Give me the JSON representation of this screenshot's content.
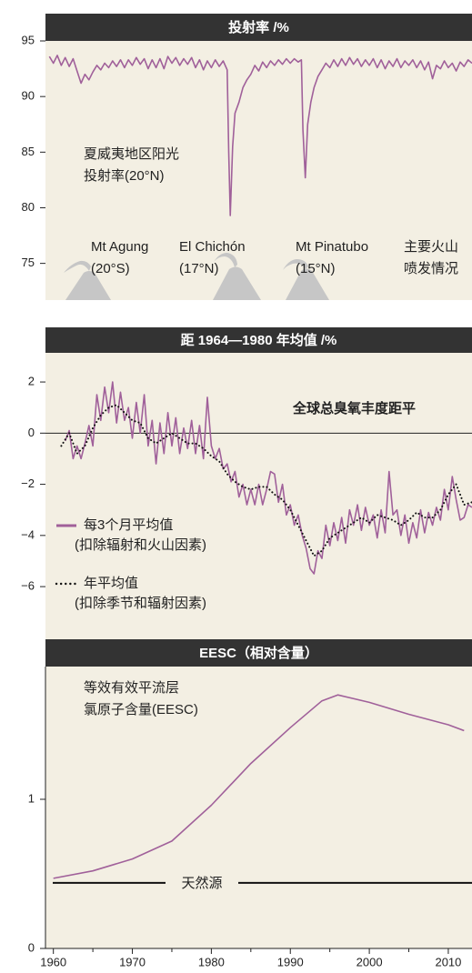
{
  "chart_data": [
    {
      "type": "line",
      "title": "投射率 /%",
      "background": "#f3efe3",
      "header_color": "#333333",
      "xlim": [
        1959,
        2013
      ],
      "ylim": [
        71.7,
        95
      ],
      "yticks": [
        75,
        80,
        85,
        90,
        95
      ],
      "annotations": [
        [
          "夏威夷地区阳光",
          "投射率(20°N)"
        ],
        [
          "Mt Agung",
          "(20°S)"
        ],
        [
          "El Chichón",
          "(17°N)"
        ],
        [
          "Mt Pinatubo",
          "(15°N)"
        ],
        [
          "主要火山",
          "喷发情况"
        ]
      ],
      "series": [
        {
          "color": "#a0609a",
          "x": [
            1959.5,
            1960,
            1960.5,
            1961,
            1961.5,
            1962,
            1962.5,
            1963,
            1963.5,
            1964,
            1964.5,
            1965,
            1965.5,
            1966,
            1966.5,
            1967,
            1967.5,
            1968,
            1968.5,
            1969,
            1969.5,
            1970,
            1970.5,
            1971,
            1971.5,
            1972,
            1972.5,
            1973,
            1973.5,
            1974,
            1974.5,
            1975,
            1975.5,
            1976,
            1976.5,
            1977,
            1977.5,
            1978,
            1978.5,
            1979,
            1979.5,
            1980,
            1980.5,
            1981,
            1981.5,
            1982,
            1982.2,
            1982.4,
            1982.7,
            1983,
            1983.5,
            1984,
            1984.5,
            1985,
            1985.5,
            1986,
            1986.5,
            1987,
            1987.5,
            1988,
            1988.5,
            1989,
            1989.5,
            1990,
            1990.5,
            1991,
            1991.4,
            1991.6,
            1991.9,
            1992.2,
            1992.6,
            1993,
            1993.5,
            1994,
            1994.5,
            1995,
            1995.5,
            1996,
            1996.5,
            1997,
            1997.5,
            1998,
            1998.5,
            1999,
            1999.5,
            2000,
            2000.5,
            2001,
            2001.5,
            2002,
            2002.5,
            2003,
            2003.5,
            2004,
            2004.5,
            2005,
            2005.5,
            2006,
            2006.5,
            2007,
            2007.5,
            2008,
            2008.5,
            2009,
            2009.5,
            2010,
            2010.5,
            2011,
            2011.5,
            2012,
            2012.5,
            2013
          ],
          "values": [
            93.6,
            93.0,
            93.7,
            92.8,
            93.5,
            92.7,
            93.4,
            92.3,
            91.2,
            92.0,
            91.5,
            92.2,
            92.8,
            92.4,
            93.0,
            92.6,
            93.2,
            92.7,
            93.3,
            92.6,
            93.3,
            92.8,
            93.5,
            92.9,
            93.4,
            92.5,
            93.3,
            92.6,
            93.4,
            92.5,
            93.6,
            93.0,
            93.5,
            92.8,
            93.4,
            92.9,
            93.5,
            92.6,
            93.3,
            92.4,
            93.2,
            92.6,
            93.3,
            92.7,
            93.2,
            92.4,
            85,
            79.3,
            85.5,
            88.5,
            89.5,
            90.8,
            91.5,
            92.0,
            92.8,
            92.3,
            93.1,
            92.6,
            93.2,
            92.8,
            93.3,
            92.9,
            93.4,
            93.0,
            93.4,
            93.1,
            93.3,
            87,
            82.7,
            87.5,
            89.5,
            90.8,
            91.8,
            92.4,
            93.0,
            92.6,
            93.3,
            92.7,
            93.4,
            92.8,
            93.5,
            92.9,
            93.4,
            92.7,
            93.3,
            92.8,
            93.4,
            92.6,
            93.3,
            92.5,
            93.2,
            92.7,
            93.4,
            92.6,
            93.2,
            92.8,
            93.3,
            92.6,
            93.2,
            92.4,
            93.1,
            91.6,
            92.8,
            92.5,
            93.2,
            92.6,
            93.0,
            92.3,
            93.1,
            92.7,
            93.3,
            93.0
          ]
        }
      ]
    },
    {
      "type": "line",
      "title": "距 1964—1980 年均值 /%",
      "background": "#f3efe3",
      "header_color": "#333333",
      "xlim": [
        1959,
        2013
      ],
      "ylim": [
        -8.13,
        3.14
      ],
      "yticks": [
        {
          "value": -6,
          "label": "−6"
        },
        {
          "value": -4,
          "label": "−4"
        },
        {
          "value": -2,
          "label": "−2"
        },
        0,
        2
      ],
      "zeroline": true,
      "annotations": [
        [
          "全球总臭氧丰度距平"
        ]
      ],
      "series": [
        {
          "name": "每3个月平均值",
          "name_detail": "(扣除辐射和火山因素)",
          "color": "#a0609a",
          "style": "solid",
          "x": [
            1961.5,
            1962,
            1962.5,
            1963,
            1963.5,
            1964,
            1964.5,
            1965,
            1965.5,
            1966,
            1966.5,
            1967,
            1967.5,
            1968,
            1968.5,
            1969,
            1969.5,
            1970,
            1970.5,
            1971,
            1971.5,
            1972,
            1972.5,
            1973,
            1973.5,
            1974,
            1974.5,
            1975,
            1975.5,
            1976,
            1976.5,
            1977,
            1977.5,
            1978,
            1978.5,
            1979,
            1979.5,
            1980,
            1980.5,
            1981,
            1981.5,
            1982,
            1982.5,
            1983,
            1983.5,
            1984,
            1984.5,
            1985,
            1985.5,
            1986,
            1986.5,
            1987,
            1987.5,
            1988,
            1988.5,
            1989,
            1989.5,
            1990,
            1990.5,
            1991,
            1991.5,
            1992,
            1992.5,
            1993,
            1993.5,
            1994,
            1994.5,
            1995,
            1995.5,
            1996,
            1996.5,
            1997,
            1997.5,
            1998,
            1998.5,
            1999,
            1999.5,
            2000,
            2000.5,
            2001,
            2001.5,
            2002,
            2002.5,
            2003,
            2003.5,
            2004,
            2004.5,
            2005,
            2005.5,
            2006,
            2006.5,
            2007,
            2007.5,
            2008,
            2008.5,
            2009,
            2009.5,
            2010,
            2010.5,
            2011,
            2011.5,
            2012,
            2012.5,
            2013
          ],
          "values": [
            -0.3,
            0.1,
            -1.0,
            -0.5,
            -1.0,
            -0.4,
            0.3,
            -0.5,
            1.5,
            0.5,
            1.8,
            0.8,
            2.0,
            0.4,
            1.6,
            0.5,
            1.0,
            -0.2,
            1.2,
            0.0,
            1.5,
            -0.5,
            0.5,
            -1.2,
            0.4,
            -0.8,
            0.8,
            -0.5,
            0.6,
            -0.8,
            0.2,
            -0.6,
            0.5,
            -0.8,
            0.3,
            -1.0,
            1.4,
            -0.5,
            -1.0,
            -0.6,
            -1.4,
            -1.2,
            -1.9,
            -1.5,
            -2.5,
            -2.0,
            -2.8,
            -2.2,
            -2.8,
            -2.0,
            -2.8,
            -2.2,
            -1.5,
            -1.6,
            -2.7,
            -2.0,
            -3.2,
            -2.8,
            -3.6,
            -3.2,
            -4.0,
            -4.5,
            -5.3,
            -5.5,
            -4.6,
            -4.9,
            -3.6,
            -4.4,
            -3.5,
            -4.2,
            -3.3,
            -4.3,
            -3.0,
            -3.6,
            -2.8,
            -3.8,
            -2.9,
            -3.6,
            -3.2,
            -4.1,
            -3.0,
            -3.9,
            -1.5,
            -3.2,
            -3.0,
            -4.0,
            -3.2,
            -4.3,
            -3.5,
            -4.1,
            -3.0,
            -3.9,
            -3.1,
            -3.6,
            -2.9,
            -3.4,
            -2.2,
            -3.0,
            -1.7,
            -2.6,
            -3.4,
            -3.3,
            -2.8,
            -2.9
          ]
        },
        {
          "name": "年平均值",
          "name_detail": "(扣除季节和辐射因素)",
          "color": "#111111",
          "style": "dotted",
          "x": [
            1961,
            1962,
            1963,
            1964,
            1965,
            1966,
            1967,
            1968,
            1969,
            1970,
            1971,
            1972,
            1973,
            1974,
            1975,
            1976,
            1977,
            1978,
            1979,
            1980,
            1981,
            1982,
            1983,
            1984,
            1985,
            1986,
            1987,
            1988,
            1989,
            1990,
            1991,
            1992,
            1993,
            1994,
            1995,
            1996,
            1997,
            1998,
            1999,
            2000,
            2001,
            2002,
            2003,
            2004,
            2005,
            2006,
            2007,
            2008,
            2009,
            2010,
            2011,
            2012,
            2013
          ],
          "values": [
            -0.5,
            0,
            -0.8,
            -0.5,
            0.2,
            0.7,
            1.0,
            1.1,
            0.8,
            0.5,
            0.4,
            -0.2,
            -0.4,
            -0.2,
            0.0,
            -0.2,
            -0.4,
            -0.4,
            -0.6,
            -0.9,
            -1.1,
            -1.6,
            -1.9,
            -2.1,
            -2.2,
            -2.1,
            -2.1,
            -2.4,
            -2.6,
            -3.0,
            -3.6,
            -4.2,
            -4.8,
            -4.6,
            -4.1,
            -3.9,
            -3.7,
            -3.5,
            -3.3,
            -3.5,
            -3.2,
            -3.3,
            -3.4,
            -3.6,
            -3.4,
            -3.1,
            -3.3,
            -3.3,
            -3.0,
            -2.4,
            -2.0,
            -2.8,
            -2.7
          ]
        }
      ]
    },
    {
      "type": "line",
      "title": "EESC（相对含量）",
      "background": "#f3efe3",
      "header_color": "#333333",
      "xlim": [
        1959,
        2013
      ],
      "ylim": [
        0,
        1.89
      ],
      "yticks": [
        0,
        1
      ],
      "xticks": [
        1960,
        1970,
        1980,
        1990,
        2000,
        2010
      ],
      "xminorticks": [
        1965,
        1975,
        1985,
        1995,
        2005
      ],
      "annotations": [
        [
          "等效有效平流层",
          "氯原子含量(EESC)"
        ]
      ],
      "reference": {
        "label": "天然源",
        "value": 0.44,
        "color": "#111111"
      },
      "series": [
        {
          "color": "#a0609a",
          "x": [
            1960,
            1965,
            1970,
            1975,
            1980,
            1985,
            1990,
            1994,
            1996,
            2000,
            2005,
            2010,
            2012
          ],
          "values": [
            0.47,
            0.52,
            0.6,
            0.72,
            0.96,
            1.24,
            1.48,
            1.66,
            1.7,
            1.65,
            1.57,
            1.5,
            1.46
          ]
        }
      ]
    }
  ]
}
